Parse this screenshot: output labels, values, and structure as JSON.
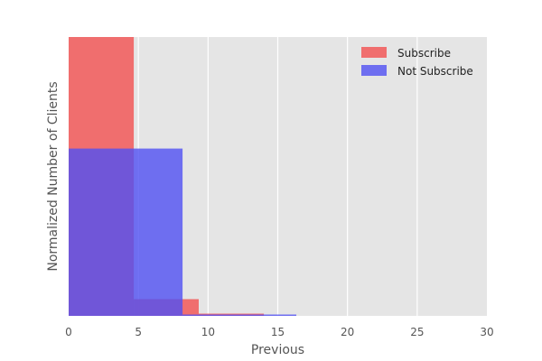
{
  "chart_data": {
    "type": "bar",
    "subtype": "overlaid-histogram",
    "xlabel": "Previous",
    "ylabel": "Normalized Number of Clients",
    "xlim": [
      0,
      30
    ],
    "ylim": [
      0,
      1.0
    ],
    "x_ticks": [
      0,
      5,
      10,
      15,
      20,
      25,
      30
    ],
    "y_ticks_shown": false,
    "grid": true,
    "background": "#e5e5e5",
    "legend_position": "top-right",
    "series": [
      {
        "name": "Subscribe",
        "color": "#f25050",
        "opacity": 0.8,
        "bins": [
          {
            "x0": 0.0,
            "x1": 4.67,
            "value": 1.0
          },
          {
            "x0": 4.67,
            "x1": 9.33,
            "value": 0.06
          },
          {
            "x0": 9.33,
            "x1": 14.0,
            "value": 0.008
          },
          {
            "x0": 14.0,
            "x1": 18.67,
            "value": 0.0
          },
          {
            "x0": 18.67,
            "x1": 23.33,
            "value": 0.0
          },
          {
            "x0": 23.33,
            "x1": 28.0,
            "value": 0.0
          }
        ]
      },
      {
        "name": "Not Subscribe",
        "color": "#5050f2",
        "opacity": 0.8,
        "bins": [
          {
            "x0": 0.0,
            "x1": 8.17,
            "value": 0.6
          },
          {
            "x0": 8.17,
            "x1": 16.33,
            "value": 0.003
          },
          {
            "x0": 16.33,
            "x1": 24.5,
            "value": 0.0
          },
          {
            "x0": 24.5,
            "x1": 32.67,
            "value": 0.0
          }
        ]
      }
    ]
  }
}
